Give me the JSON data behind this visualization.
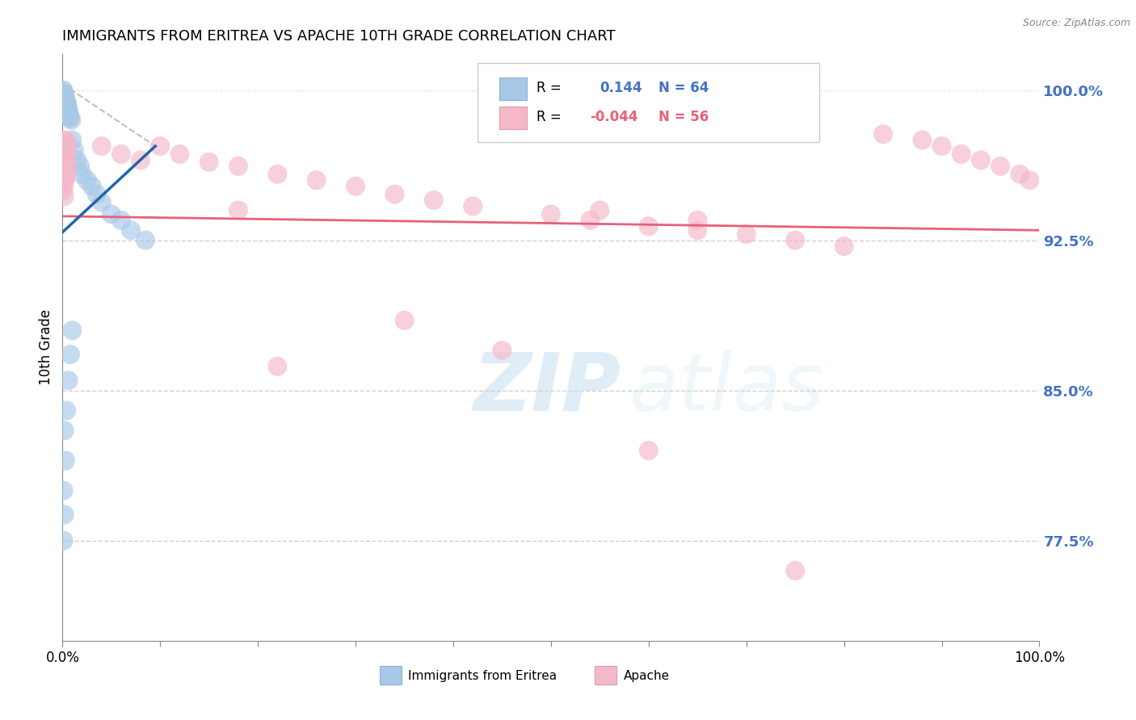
{
  "title": "IMMIGRANTS FROM ERITREA VS APACHE 10TH GRADE CORRELATION CHART",
  "source": "Source: ZipAtlas.com",
  "ylabel": "10th Grade",
  "legend_label1": "Immigrants from Eritrea",
  "legend_label2": "Apache",
  "R1": 0.144,
  "N1": 64,
  "R2": -0.044,
  "N2": 56,
  "xlim": [
    0.0,
    1.0
  ],
  "ylim": [
    0.725,
    1.018
  ],
  "yticks": [
    0.775,
    0.85,
    0.925,
    1.0
  ],
  "ytick_labels": [
    "77.5%",
    "85.0%",
    "92.5%",
    "100.0%"
  ],
  "xticks": [
    0.0,
    0.1,
    0.2,
    0.3,
    0.4,
    0.5,
    0.6,
    0.7,
    0.8,
    0.9,
    1.0
  ],
  "xtick_labels_show": [
    "0.0%",
    "",
    "",
    "",
    "",
    "",
    "",
    "",
    "",
    "",
    "100.0%"
  ],
  "color_blue": "#a8c8e8",
  "color_pink": "#f4b8c8",
  "color_blue_line": "#2166ac",
  "color_pink_line": "#e8607a",
  "color_label": "#4472c4",
  "watermark_zip": "ZIP",
  "watermark_atlas": "atlas",
  "blue_dots_x": [
    0.001,
    0.001,
    0.001,
    0.001,
    0.001,
    0.001,
    0.001,
    0.001,
    0.001,
    0.001,
    0.002,
    0.002,
    0.002,
    0.002,
    0.002,
    0.002,
    0.002,
    0.002,
    0.002,
    0.002,
    0.003,
    0.003,
    0.003,
    0.003,
    0.003,
    0.003,
    0.003,
    0.003,
    0.004,
    0.004,
    0.004,
    0.004,
    0.004,
    0.005,
    0.005,
    0.005,
    0.006,
    0.006,
    0.007,
    0.007,
    0.008,
    0.009,
    0.01,
    0.012,
    0.015,
    0.018,
    0.02,
    0.025,
    0.03,
    0.035,
    0.04,
    0.05,
    0.06,
    0.07,
    0.085,
    0.01,
    0.008,
    0.006,
    0.004,
    0.002,
    0.003,
    0.001,
    0.002,
    0.001
  ],
  "blue_dots_y": [
    1.0,
    0.999,
    0.998,
    0.997,
    0.996,
    0.995,
    0.994,
    0.993,
    0.992,
    0.991,
    0.998,
    0.997,
    0.996,
    0.995,
    0.994,
    0.993,
    0.992,
    0.991,
    0.99,
    0.989,
    0.996,
    0.995,
    0.994,
    0.993,
    0.992,
    0.991,
    0.99,
    0.989,
    0.994,
    0.993,
    0.992,
    0.991,
    0.99,
    0.993,
    0.992,
    0.991,
    0.99,
    0.989,
    0.988,
    0.987,
    0.986,
    0.985,
    0.975,
    0.97,
    0.965,
    0.962,
    0.958,
    0.955,
    0.952,
    0.948,
    0.944,
    0.938,
    0.935,
    0.93,
    0.925,
    0.88,
    0.868,
    0.855,
    0.84,
    0.83,
    0.815,
    0.8,
    0.788,
    0.775
  ],
  "pink_dots_x": [
    0.001,
    0.002,
    0.003,
    0.001,
    0.002,
    0.003,
    0.002,
    0.001,
    0.002,
    0.003,
    0.004,
    0.005,
    0.004,
    0.003,
    0.005,
    0.004,
    0.003,
    0.002,
    0.001,
    0.002,
    0.04,
    0.06,
    0.08,
    0.1,
    0.12,
    0.15,
    0.18,
    0.22,
    0.26,
    0.3,
    0.34,
    0.38,
    0.42,
    0.5,
    0.54,
    0.6,
    0.65,
    0.7,
    0.75,
    0.8,
    0.84,
    0.88,
    0.9,
    0.92,
    0.94,
    0.96,
    0.98,
    0.99,
    0.35,
    0.45,
    0.55,
    0.65,
    0.22,
    0.18,
    0.6,
    0.75
  ],
  "pink_dots_y": [
    0.975,
    0.973,
    0.971,
    0.969,
    0.967,
    0.965,
    0.963,
    0.961,
    0.959,
    0.957,
    0.975,
    0.972,
    0.968,
    0.965,
    0.962,
    0.958,
    0.956,
    0.953,
    0.95,
    0.947,
    0.972,
    0.968,
    0.965,
    0.972,
    0.968,
    0.964,
    0.962,
    0.958,
    0.955,
    0.952,
    0.948,
    0.945,
    0.942,
    0.938,
    0.935,
    0.932,
    0.93,
    0.928,
    0.925,
    0.922,
    0.978,
    0.975,
    0.972,
    0.968,
    0.965,
    0.962,
    0.958,
    0.955,
    0.885,
    0.87,
    0.94,
    0.935,
    0.862,
    0.94,
    0.82,
    0.76
  ],
  "blue_line_x": [
    0.0,
    0.095
  ],
  "blue_line_y": [
    0.929,
    0.972
  ],
  "pink_line_x": [
    0.0,
    1.0
  ],
  "pink_line_y": [
    0.937,
    0.93
  ],
  "dash_line_x": [
    0.0,
    0.095
  ],
  "dash_line_y": [
    1.003,
    0.972
  ]
}
